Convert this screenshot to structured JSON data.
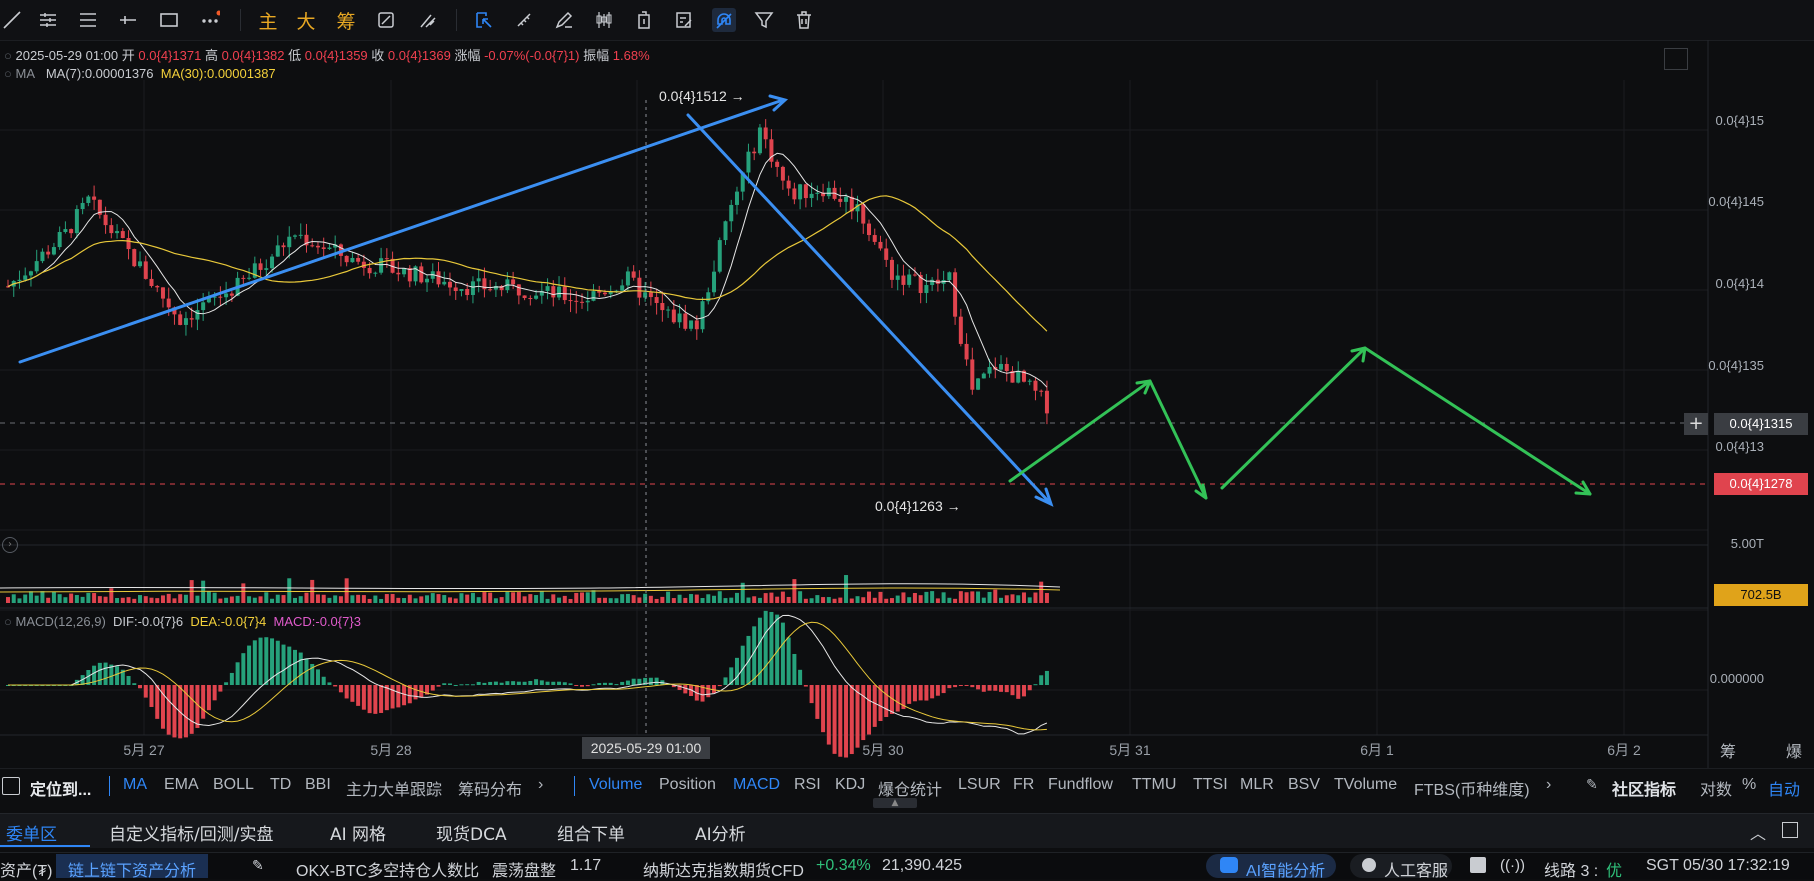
{
  "toolbar": {
    "icons": [
      "trend-line",
      "multi-line",
      "horizontal-lines",
      "horizontal-ray",
      "rectangle",
      "more"
    ],
    "cn_buttons": [
      "主",
      "大",
      "筹"
    ],
    "right_icons": [
      "cycle",
      "brush",
      "select",
      "ruler",
      "pen",
      "candle",
      "delete-mini",
      "note",
      "magnet",
      "filter",
      "trash"
    ]
  },
  "legend": {
    "date": "2025-05-29 01:00",
    "open_label": "开",
    "open": "0.0{4}1371",
    "high_label": "高",
    "high": "0.0{4}1382",
    "low_label": "低",
    "low": "0.0{4}1359",
    "close_label": "收",
    "close": "0.0{4}1369",
    "change_label": "涨幅",
    "change": "-0.07%(-0.0{7}1)",
    "amp_label": "振幅",
    "amp": "1.68%",
    "ma_name": "MA",
    "ma7": "MA(7):0.00001376",
    "ma30": "MA(30):0.00001387",
    "macd_name": "MACD(12,26,9)",
    "dif": "DIF:-0.0{7}6",
    "dea": "DEA:-0.0{7}4",
    "macd": "MACD:-0.0{7}3"
  },
  "annotations": {
    "high_mark": "0.0{4}1512 →",
    "low_mark": "0.0{4}1263 →"
  },
  "price_axis": {
    "labels": [
      "0.0{4}15",
      "0.0{4}145",
      "0.0{4}14",
      "0.0{4}135",
      "0.0{4}13"
    ],
    "crosshair_price": "0.0{4}1315",
    "last_price": "0.0{4}1278",
    "vol_max": "5.00T",
    "vol_current": "702.5B",
    "macd_zero": "0.000000"
  },
  "date_axis": {
    "labels": [
      "5月 27",
      "5月 28",
      "5月 30",
      "5月 31",
      "6月 1",
      "6月 2"
    ],
    "crosshair_date": "2025-05-29 01:00",
    "right_labels": [
      "筹",
      "爆"
    ]
  },
  "indicators": {
    "locate": "定位到...",
    "main": [
      "MA",
      "EMA",
      "BOLL",
      "TD",
      "BBI",
      "主力大单跟踪",
      "筹码分布"
    ],
    "sub": [
      "Volume",
      "Position",
      "MACD",
      "RSI",
      "KDJ",
      "爆仓统计",
      "LSUR",
      "FR",
      "Fundflow",
      "TTMU",
      "TTSI",
      "MLR",
      "BSV",
      "TVolume",
      "FTBS(币种维度)"
    ],
    "community": "社区指标",
    "log": "对数",
    "pct": "%",
    "auto": "自动"
  },
  "tabs": [
    "委单区",
    "自定义指标/回测/实盘",
    "AI 网格",
    "现货DCA",
    "组合下单",
    "AI分析"
  ],
  "status": {
    "assets": "资产(₮)",
    "onchain": "链上链下资产分析",
    "ticker1_name": "OKX-BTC多空持仓人数比",
    "ticker1_state": "震荡盘整",
    "ticker1_val": "1.17",
    "ticker2_name": "纳斯达克指数期货CFD",
    "ticker2_change": "+0.34%",
    "ticker2_val": "21,390.425",
    "ai": "AI智能分析",
    "service": "人工客服",
    "line_label": "线路 3 :",
    "line_quality": "优",
    "time": "SGT  05/30 17:32:19"
  },
  "colors": {
    "up": "#26a17b",
    "down": "#e0444e",
    "ma7": "#e6e6e6",
    "ma30": "#e8c83a",
    "blue_line": "#3b8ff2",
    "green_proj": "#33c257",
    "accent": "#2f86f6",
    "vol_tag": "#e0a31a"
  },
  "chart_data": {
    "type": "candlestick",
    "price_range": [
      1.27e-05,
      1.52e-05
    ],
    "x_range": [
      "5月 26",
      "6月 2"
    ],
    "high": 1.512e-05,
    "low": 1.263e-05,
    "last": 1.278e-05,
    "crosshair": 1.315e-05
  }
}
